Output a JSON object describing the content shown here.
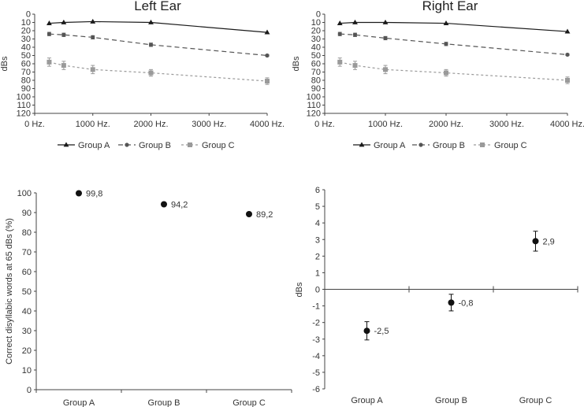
{
  "chart_data": [
    {
      "id": "left-ear",
      "type": "line",
      "title": "Left Ear",
      "xlabel": "",
      "ylabel": "dBs",
      "y_inverted": true,
      "xlim": [
        0,
        4000
      ],
      "ylim": [
        0,
        120
      ],
      "x_ticks": [
        "0 Hz.",
        "1000 Hz.",
        "2000 Hz.",
        "3000 Hz.",
        "4000 Hz."
      ],
      "y_ticks": [
        "0",
        "10",
        "20",
        "30",
        "40",
        "50",
        "60",
        "70",
        "80",
        "90",
        "100",
        "110",
        "120"
      ],
      "x": [
        250,
        500,
        1000,
        2000,
        4000
      ],
      "series": [
        {
          "name": "Group A",
          "values": [
            11,
            10,
            9,
            10,
            22
          ],
          "error": [
            0,
            0,
            0,
            0,
            0
          ],
          "color": "#1a1a1a",
          "dash": "",
          "marker": "triangle"
        },
        {
          "name": "Group B",
          "values": [
            24,
            25,
            28,
            37,
            50
          ],
          "error": [
            2,
            2,
            2,
            2,
            1
          ],
          "color": "#555555",
          "dash": "6 4",
          "marker": "circle"
        },
        {
          "name": "Group C",
          "values": [
            58,
            62,
            67,
            71,
            81
          ],
          "error": [
            5,
            5,
            5,
            4,
            4
          ],
          "color": "#9a9a9a",
          "dash": "3 3",
          "marker": "square"
        }
      ],
      "legend": [
        "Group A",
        "Group B",
        "Group C"
      ]
    },
    {
      "id": "right-ear",
      "type": "line",
      "title": "Right Ear",
      "xlabel": "",
      "ylabel": "dBs",
      "y_inverted": true,
      "xlim": [
        0,
        4000
      ],
      "ylim": [
        0,
        120
      ],
      "x_ticks": [
        "0 Hz.",
        "1000 Hz.",
        "2000 Hz.",
        "3000 Hz.",
        "4000 Hz."
      ],
      "y_ticks": [
        "0",
        "10",
        "20",
        "30",
        "40",
        "50",
        "60",
        "70",
        "80",
        "90",
        "100",
        "110",
        "120"
      ],
      "x": [
        250,
        500,
        1000,
        2000,
        4000
      ],
      "series": [
        {
          "name": "Group A",
          "values": [
            11,
            10,
            10,
            11,
            21
          ],
          "error": [
            0,
            0,
            0,
            0,
            0
          ],
          "color": "#1a1a1a",
          "dash": "",
          "marker": "triangle"
        },
        {
          "name": "Group B",
          "values": [
            24,
            25,
            29,
            36,
            49
          ],
          "error": [
            2,
            2,
            2,
            2,
            1
          ],
          "color": "#555555",
          "dash": "6 4",
          "marker": "circle"
        },
        {
          "name": "Group C",
          "values": [
            58,
            62,
            67,
            71,
            80
          ],
          "error": [
            5,
            5,
            5,
            4,
            4
          ],
          "color": "#9a9a9a",
          "dash": "3 3",
          "marker": "square"
        }
      ],
      "legend": [
        "Group A",
        "Group B",
        "Group C"
      ]
    },
    {
      "id": "disyllabic",
      "type": "scatter",
      "title": "",
      "xlabel": "",
      "ylabel": "Correct disyllabic words at 65 dBs (%)",
      "ylim": [
        0,
        100
      ],
      "y_ticks": [
        "0",
        "10",
        "20",
        "30",
        "40",
        "50",
        "60",
        "70",
        "80",
        "90",
        "100"
      ],
      "categories": [
        "Group A",
        "Group B",
        "Group C"
      ],
      "values": [
        99.8,
        94.2,
        89.2
      ],
      "error": [
        0,
        0.6,
        1.5
      ],
      "labels": [
        "99,8",
        "94,2",
        "89,2"
      ]
    },
    {
      "id": "difference",
      "type": "scatter",
      "title": "",
      "xlabel": "",
      "ylabel": "dBs",
      "ylim": [
        -6,
        6
      ],
      "y_ticks": [
        "-6",
        "-5",
        "-4",
        "-3",
        "-2",
        "-1",
        "0",
        "1",
        "2",
        "3",
        "4",
        "5",
        "6"
      ],
      "categories": [
        "Group A",
        "Group B",
        "Group C"
      ],
      "values": [
        -2.5,
        -0.8,
        2.9
      ],
      "error": [
        0.55,
        0.5,
        0.6
      ],
      "labels": [
        "-2,5",
        "-0,8",
        "2,9"
      ]
    }
  ]
}
